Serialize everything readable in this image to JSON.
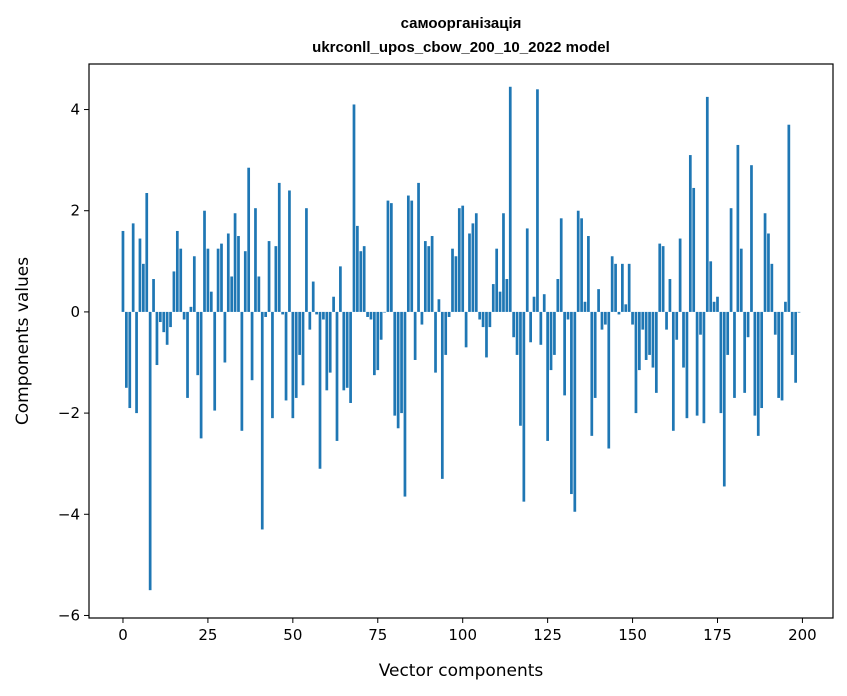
{
  "chart_data": {
    "type": "bar",
    "title_line1": "самоорганізація",
    "title_line2": "ukrconll_upos_cbow_200_10_2022 model",
    "xlabel": "Vector components",
    "ylabel": "Components values",
    "xlim": [
      -10,
      209
    ],
    "ylim": [
      -6.05,
      4.9
    ],
    "x_ticks": [
      0,
      25,
      50,
      75,
      100,
      125,
      150,
      175,
      200
    ],
    "y_ticks": [
      -6,
      -4,
      -2,
      0,
      2,
      4
    ],
    "x_tick_labels": [
      "0",
      "25",
      "50",
      "75",
      "100",
      "125",
      "150",
      "175",
      "200"
    ],
    "y_tick_labels": [
      "−6",
      "−4",
      "−2",
      "0",
      "2",
      "4"
    ],
    "bar_color": "#1f77b4",
    "grid": false,
    "values": [
      1.6,
      -1.5,
      -1.9,
      1.75,
      -2.0,
      1.45,
      0.95,
      2.35,
      -5.5,
      0.65,
      -1.05,
      -0.2,
      -0.4,
      -0.65,
      -0.3,
      0.8,
      1.6,
      1.25,
      -0.15,
      -1.7,
      0.1,
      1.1,
      -1.25,
      -2.5,
      2.0,
      1.25,
      0.4,
      -1.95,
      1.25,
      1.35,
      -1.0,
      1.55,
      0.7,
      1.95,
      1.5,
      -2.35,
      1.2,
      2.85,
      -1.35,
      2.05,
      0.7,
      -4.3,
      -0.1,
      1.4,
      -2.1,
      1.3,
      2.55,
      -0.05,
      -1.75,
      2.4,
      -2.1,
      -1.7,
      -0.85,
      -1.45,
      2.05,
      -0.35,
      0.6,
      -0.05,
      -3.1,
      -0.15,
      -1.55,
      -1.2,
      0.3,
      -2.55,
      0.9,
      -1.55,
      -1.5,
      -1.8,
      4.1,
      1.7,
      1.2,
      1.3,
      -0.1,
      -0.15,
      -1.25,
      -1.15,
      -0.55,
      0.0,
      2.2,
      2.15,
      -2.05,
      -2.3,
      -2.0,
      -3.65,
      2.3,
      2.2,
      -0.95,
      2.55,
      -0.25,
      1.4,
      1.3,
      1.5,
      -1.2,
      0.25,
      -3.3,
      -0.85,
      -0.1,
      1.25,
      1.1,
      2.05,
      2.1,
      -0.7,
      1.55,
      1.75,
      1.95,
      -0.15,
      -0.3,
      -0.9,
      -0.3,
      0.55,
      1.25,
      0.4,
      1.95,
      0.65,
      4.45,
      -0.5,
      -0.85,
      -2.25,
      -3.75,
      1.65,
      -0.6,
      0.3,
      4.4,
      -0.65,
      0.35,
      -2.55,
      -1.15,
      -0.85,
      0.65,
      1.85,
      -1.65,
      -0.15,
      -3.6,
      -3.95,
      2.0,
      1.85,
      0.2,
      1.5,
      -2.45,
      -1.7,
      0.45,
      -0.35,
      -0.25,
      -2.7,
      1.1,
      0.95,
      -0.05,
      0.95,
      0.15,
      0.95,
      -0.25,
      -2.0,
      -1.15,
      -0.35,
      -0.95,
      -0.85,
      -1.1,
      -1.6,
      1.35,
      1.3,
      -0.35,
      0.65,
      -2.35,
      -0.55,
      1.45,
      -1.1,
      -2.1,
      3.1,
      2.45,
      -2.05,
      -0.45,
      -2.2,
      4.25,
      1.0,
      0.2,
      0.3,
      -2.0,
      -3.45,
      -0.85,
      2.05,
      -1.7,
      3.3,
      1.25,
      -1.6,
      -0.5,
      2.9,
      -2.05,
      -2.45,
      -1.9,
      1.95,
      1.55,
      0.95,
      -0.45,
      -1.7,
      -1.75,
      0.2,
      3.7,
      -0.85,
      -1.4,
      0.0
    ]
  }
}
